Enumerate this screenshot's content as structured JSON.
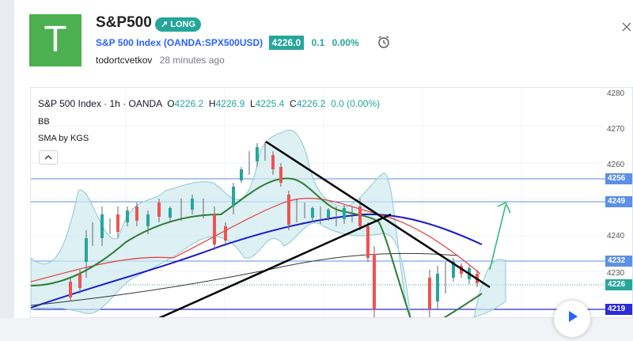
{
  "idea": {
    "avatar_letter": "T",
    "title": "S&P500",
    "badge": "LONG",
    "symbol_link": "S&P 500 Index (OANDA:SPX500USD)",
    "price": "4226.0",
    "change": "0.1",
    "change_pct": "0.00%",
    "author": "todortcvetkov",
    "time": "28 minutes ago"
  },
  "chart": {
    "legend_name": "S&P 500 Index · 1h · OANDA",
    "o_label": "O",
    "o": "4226.2",
    "h_label": "H",
    "h": "4226.9",
    "l_label": "L",
    "l": "4225.4",
    "c_label": "C",
    "c": "4226.2",
    "chg": "0.0 (0.00%)",
    "ind1": "BB",
    "ind2": "SMA by KGS",
    "axis_labels": [
      "4280",
      "4270",
      "4260",
      "4240",
      "4230"
    ],
    "axis_tags": [
      "4256",
      "4249",
      "4232",
      "4226",
      "4219"
    ],
    "colors": {
      "up": "#26a69a",
      "down": "#ef5350",
      "accent": "#2962ff",
      "badge": "#26a69a"
    }
  },
  "chart_data": {
    "type": "line",
    "title": "",
    "ylim": [
      4216,
      4282
    ],
    "horizontal_levels": [
      4256,
      4249,
      4232,
      4219
    ],
    "current_price": 4226.2
  }
}
